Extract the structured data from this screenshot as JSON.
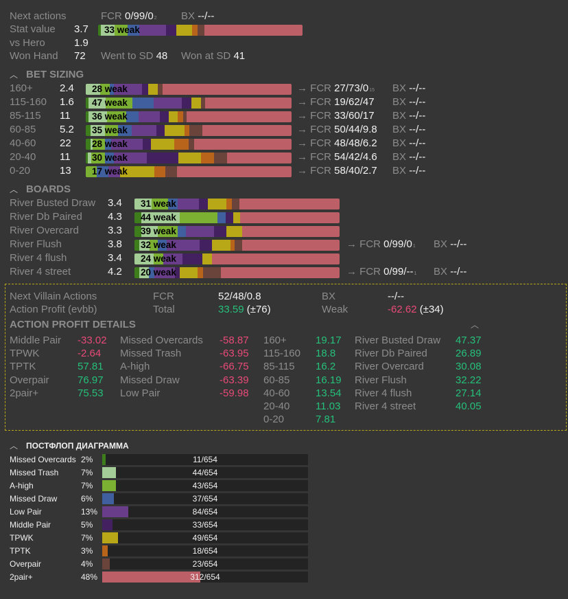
{
  "palette": {
    "dg": "#3e7d1c",
    "lg": "#a3cc96",
    "g": "#7bb033",
    "b": "#3f5f9f",
    "p": "#693d8a",
    "dp": "#43205f",
    "y": "#b8a818",
    "o": "#b8641a",
    "br": "#6a433b",
    "r": "#bc5f66",
    "positive": "#25c07a",
    "negative": "#e84a78",
    "box_border": "#b8a818"
  },
  "top": {
    "next_actions_label": "Next actions",
    "fcr_label": "FCR",
    "fcr_value": "0/99/0",
    "fcr_sub": "2",
    "bx_label": "BX",
    "bx_value": "--/--",
    "stat_value_label": "Stat value",
    "stat_value": "3.7",
    "bar": {
      "weak_count": "33",
      "weak_label": "weak",
      "segments": [
        [
          "dg",
          4
        ],
        [
          "lg",
          20
        ],
        [
          "g",
          19
        ],
        [
          "b",
          17
        ],
        [
          "p",
          39
        ],
        [
          "dp",
          15
        ],
        [
          "y",
          23
        ],
        [
          "o",
          8
        ],
        [
          "br",
          10
        ],
        [
          "r",
          143
        ]
      ]
    },
    "vs_hero_label": "vs Hero",
    "vs_hero_value": "1.9",
    "won_hand_label": "Won Hand",
    "won_hand_value": "72",
    "went_sd_label": "Went to SD",
    "went_sd_value": "48",
    "won_sd_label": "Won at SD",
    "won_sd_value": "41"
  },
  "bet_sizing": {
    "title": "BET SIZING",
    "rows": [
      {
        "label": "160+",
        "value": "2.4",
        "weak_count": "28",
        "weak_label": "weak",
        "fcr_label": "FCR",
        "fcr": "27/73/0",
        "fcr_sub": "15",
        "bx_label": "BX",
        "bx": "--/--",
        "segments": [
          [
            "lg",
            52
          ],
          [
            "g",
            33
          ],
          [
            "b",
            15
          ],
          [
            "p",
            100
          ],
          [
            "dp",
            23
          ],
          [
            "y",
            33
          ],
          [
            "br",
            17
          ],
          [
            "r",
            460
          ]
        ]
      },
      {
        "label": "115-160",
        "value": "1.6",
        "weak_count": "47",
        "weak_label": "weak",
        "fcr_label": "FCR",
        "fcr": "19/62/47",
        "bx_label": "BX",
        "bx": "--/--",
        "segments": [
          [
            "dg",
            10
          ],
          [
            "lg",
            60
          ],
          [
            "g",
            95
          ],
          [
            "b",
            78
          ],
          [
            "p",
            99
          ],
          [
            "dp",
            34
          ],
          [
            "y",
            34
          ],
          [
            "br",
            15
          ],
          [
            "r",
            308
          ]
        ]
      },
      {
        "label": "85-115",
        "value": "11",
        "weak_count": "36",
        "weak_label": "weak",
        "fcr_label": "FCR",
        "fcr": "33/60/17",
        "bx_label": "BX",
        "bx": "--/--",
        "segments": [
          [
            "dg",
            10
          ],
          [
            "lg",
            65
          ],
          [
            "g",
            68
          ],
          [
            "b",
            44
          ],
          [
            "p",
            76
          ],
          [
            "dp",
            32
          ],
          [
            "y",
            32
          ],
          [
            "o",
            20
          ],
          [
            "br",
            12
          ],
          [
            "r",
            374
          ]
        ]
      },
      {
        "label": "60-85",
        "value": "5.2",
        "weak_count": "35",
        "weak_label": "weak",
        "fcr_label": "FCR",
        "fcr": "50/44/9.8",
        "bx_label": "BX",
        "bx": "--/--",
        "segments": [
          [
            "dg",
            17
          ],
          [
            "lg",
            51
          ],
          [
            "g",
            46
          ],
          [
            "b",
            51
          ],
          [
            "p",
            86
          ],
          [
            "dp",
            29
          ],
          [
            "y",
            71
          ],
          [
            "o",
            18
          ],
          [
            "br",
            46
          ],
          [
            "r",
            318
          ]
        ]
      },
      {
        "label": "40-60",
        "value": "22",
        "weak_count": "28",
        "weak_label": "weak",
        "fcr_label": "FCR",
        "fcr": "48/48/6.2",
        "bx_label": "BX",
        "bx": "--/--",
        "segments": [
          [
            "dg",
            18
          ],
          [
            "lg",
            7
          ],
          [
            "g",
            43
          ],
          [
            "b",
            22
          ],
          [
            "p",
            112
          ],
          [
            "dp",
            29
          ],
          [
            "y",
            84
          ],
          [
            "o",
            51
          ],
          [
            "br",
            20
          ],
          [
            "r",
            347
          ]
        ]
      },
      {
        "label": "20-40",
        "value": "11",
        "weak_count": "30",
        "weak_label": "weak",
        "fcr_label": "FCR",
        "fcr": "54/42/4.6",
        "bx_label": "BX",
        "bx": "--/--",
        "segments": [
          [
            "dg",
            8
          ],
          [
            "lg",
            12
          ],
          [
            "g",
            48
          ],
          [
            "b",
            32
          ],
          [
            "p",
            117
          ],
          [
            "dp",
            112
          ],
          [
            "y",
            81
          ],
          [
            "o",
            47
          ],
          [
            "br",
            46
          ],
          [
            "r",
            230
          ]
        ]
      },
      {
        "label": "0-20",
        "value": "13",
        "weak_count": "17",
        "weak_label": "weak",
        "fcr_label": "FCR",
        "fcr": "58/40/2.7",
        "bx_label": "BX",
        "bx": "--/--",
        "segments": [
          [
            "g",
            38
          ],
          [
            "b",
            42
          ],
          [
            "p",
            41
          ],
          [
            "y",
            123
          ],
          [
            "o",
            39
          ],
          [
            "br",
            42
          ],
          [
            "r",
            408
          ]
        ]
      }
    ]
  },
  "boards": {
    "title": "BOARDS",
    "rows": [
      {
        "label": "River Busted Draw",
        "value": "3.4",
        "weak_count": "31",
        "weak_label": "weak",
        "segments": [
          [
            "lg",
            55
          ],
          [
            "g",
            55
          ],
          [
            "b",
            32
          ],
          [
            "p",
            68
          ],
          [
            "dp",
            29
          ],
          [
            "y",
            62
          ],
          [
            "o",
            18
          ],
          [
            "br",
            25
          ],
          [
            "r",
            326
          ]
        ]
      },
      {
        "label": "River Db Paired",
        "value": "4.3",
        "weak_count": "44",
        "weak_label": "weak",
        "segments": [
          [
            "dg",
            23
          ],
          [
            "lg",
            124
          ],
          [
            "g",
            125
          ],
          [
            "b",
            25
          ],
          [
            "dp",
            25
          ],
          [
            "y",
            24
          ],
          [
            "r",
            324
          ]
        ]
      },
      {
        "label": "River Overcard",
        "value": "3.3",
        "weak_count": "39",
        "weak_label": "weak",
        "segments": [
          [
            "dg",
            23
          ],
          [
            "lg",
            54
          ],
          [
            "g",
            65
          ],
          [
            "b",
            27
          ],
          [
            "p",
            92
          ],
          [
            "dp",
            40
          ],
          [
            "y",
            52
          ],
          [
            "r",
            317
          ]
        ]
      },
      {
        "label": "River Flush",
        "value": "3.8",
        "weak_count": "32",
        "weak_label": "weak",
        "fcr_label": "FCR",
        "fcr": "0/99/0",
        "fcr_sub": "1",
        "bx_label": "BX",
        "bx": "--/--",
        "segments": [
          [
            "dg",
            15
          ],
          [
            "lg",
            35
          ],
          [
            "g",
            27
          ],
          [
            "b",
            28
          ],
          [
            "p",
            107
          ],
          [
            "dp",
            42
          ],
          [
            "y",
            59
          ],
          [
            "o",
            15
          ],
          [
            "br",
            23
          ],
          [
            "r",
            319
          ]
        ]
      },
      {
        "label": "River 4 flush",
        "value": "3.4",
        "weak_count": "24",
        "weak_label": "weak",
        "segments": [
          [
            "lg",
            62
          ],
          [
            "g",
            32
          ],
          [
            "p",
            64
          ],
          [
            "dp",
            64
          ],
          [
            "y",
            32
          ],
          [
            "r",
            416
          ]
        ]
      },
      {
        "label": "River 4 street",
        "value": "4.2",
        "weak_count": "20",
        "weak_label": "weak",
        "fcr_label": "FCR",
        "fcr": "0/99/--",
        "fcr_sub": "1",
        "bx_label": "BX",
        "bx": "--/--",
        "segments": [
          [
            "dg",
            15
          ],
          [
            "lg",
            33
          ],
          [
            "b",
            17
          ],
          [
            "p",
            68
          ],
          [
            "dp",
            16
          ],
          [
            "y",
            58
          ],
          [
            "o",
            18
          ],
          [
            "br",
            58
          ],
          [
            "r",
            387
          ]
        ]
      }
    ]
  },
  "villain": {
    "next_label": "Next Villain Actions",
    "fcr_label": "FCR",
    "fcr_value": "52/48/0.8",
    "bx_label": "BX",
    "bx_value": "--/--",
    "profit_label": "Action Profit (evbb)",
    "total_label": "Total",
    "total_value": "33.59",
    "total_dev": "(±76)",
    "weak_label": "Weak",
    "weak_value": "-62.62",
    "weak_dev": "(±34)",
    "details_title": "ACTION PROFIT DETAILS",
    "columns": [
      [
        [
          "Middle Pair",
          "-33.02"
        ],
        [
          "TPWK",
          "-2.64"
        ],
        [
          "TPTK",
          "57.81"
        ],
        [
          "Overpair",
          "76.97"
        ],
        [
          "2pair+",
          "75.53"
        ]
      ],
      [
        [
          "Missed Overcards",
          "-58.87"
        ],
        [
          "Missed Trash",
          "-63.95"
        ],
        [
          "A-high",
          "-66.75"
        ],
        [
          "Missed Draw",
          "-63.39"
        ],
        [
          "Low Pair",
          "-59.98"
        ]
      ],
      [
        [
          "160+",
          "19.17"
        ],
        [
          "115-160",
          "18.8"
        ],
        [
          "85-115",
          "16.2"
        ],
        [
          "60-85",
          "16.19"
        ],
        [
          "40-60",
          "13.54"
        ],
        [
          "20-40",
          "11.03"
        ],
        [
          "0-20",
          "7.81"
        ]
      ],
      [
        [
          "River Busted Draw",
          "47.37"
        ],
        [
          "River Db Paired",
          "26.89"
        ],
        [
          "River Overcard",
          "30.08"
        ],
        [
          "River Flush",
          "32.22"
        ],
        [
          "River 4 flush",
          "27.14"
        ],
        [
          "River 4 street",
          "40.05"
        ]
      ]
    ]
  },
  "postflop": {
    "title": "ПОСТФЛОП ДИАГРАММА",
    "rows": [
      {
        "label": "Missed Overcards",
        "pct": "2%",
        "count": "11/654",
        "fraction": 0.017,
        "color": "dg"
      },
      {
        "label": "Missed Trash",
        "pct": "7%",
        "count": "44/654",
        "fraction": 0.067,
        "color": "lg"
      },
      {
        "label": "A-high",
        "pct": "7%",
        "count": "43/654",
        "fraction": 0.066,
        "color": "g"
      },
      {
        "label": "Missed Draw",
        "pct": "6%",
        "count": "37/654",
        "fraction": 0.057,
        "color": "b"
      },
      {
        "label": "Low Pair",
        "pct": "13%",
        "count": "84/654",
        "fraction": 0.128,
        "color": "p"
      },
      {
        "label": "Middle Pair",
        "pct": "5%",
        "count": "33/654",
        "fraction": 0.05,
        "color": "dp"
      },
      {
        "label": "TPWK",
        "pct": "7%",
        "count": "49/654",
        "fraction": 0.075,
        "color": "y"
      },
      {
        "label": "TPTK",
        "pct": "3%",
        "count": "18/654",
        "fraction": 0.028,
        "color": "o"
      },
      {
        "label": "Overpair",
        "pct": "4%",
        "count": "23/654",
        "fraction": 0.035,
        "color": "br"
      },
      {
        "label": "2pair+",
        "pct": "48%",
        "count": "312/654",
        "fraction": 0.477,
        "color": "r"
      }
    ]
  }
}
